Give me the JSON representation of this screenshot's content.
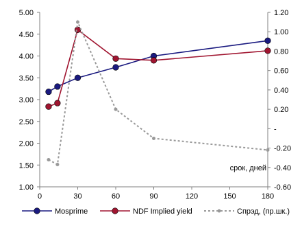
{
  "chart_data": {
    "type": "line",
    "title": "",
    "x_axis": {
      "range": [
        0,
        180
      ],
      "ticks": [
        0,
        30,
        60,
        90,
        120,
        150,
        180
      ],
      "tick_labels": [
        "0",
        "30",
        "60",
        "90",
        "120",
        "150",
        "180"
      ],
      "label": "срок, дней"
    },
    "y_left": {
      "range": [
        1.0,
        5.0
      ],
      "ticks": [
        1.0,
        1.5,
        2.0,
        2.5,
        3.0,
        3.5,
        4.0,
        4.5,
        5.0
      ],
      "tick_labels": [
        "1.00",
        "1.50",
        "2.00",
        "2.50",
        "3.00",
        "3.50",
        "4.00",
        "4.50",
        "5.00"
      ]
    },
    "y_right": {
      "range": [
        -0.6,
        1.2
      ],
      "ticks": [
        -0.6,
        -0.4,
        -0.2,
        0.0,
        0.2,
        0.4,
        0.6,
        0.8,
        1.0,
        1.2
      ],
      "tick_labels": [
        "-0.60",
        "-0.40",
        "-0.20",
        "-",
        "0.20",
        "0.40",
        "0.60",
        "0.80",
        "1.00",
        "1.20"
      ]
    },
    "grid": false,
    "legend_position": "bottom",
    "series": [
      {
        "name": "Mosprime",
        "axis": "left",
        "style": "solid-line-markers",
        "color": "#1a1a80",
        "x": [
          7,
          14,
          30,
          60,
          90,
          180
        ],
        "values": [
          3.18,
          3.3,
          3.5,
          3.74,
          4.0,
          4.35
        ]
      },
      {
        "name": "NDF Implied yield",
        "axis": "left",
        "style": "solid-line-markers",
        "color": "#a01530",
        "x": [
          7,
          14,
          30,
          60,
          90,
          180
        ],
        "values": [
          2.84,
          2.92,
          4.6,
          3.94,
          3.9,
          4.12
        ]
      },
      {
        "name": "Спрэд, (пр.шк.)",
        "axis": "right",
        "style": "dashed-line-markers",
        "color": "#999999",
        "x": [
          7,
          14,
          30,
          60,
          90,
          180
        ],
        "values": [
          -0.32,
          -0.37,
          1.1,
          0.2,
          -0.1,
          -0.22
        ]
      }
    ]
  }
}
